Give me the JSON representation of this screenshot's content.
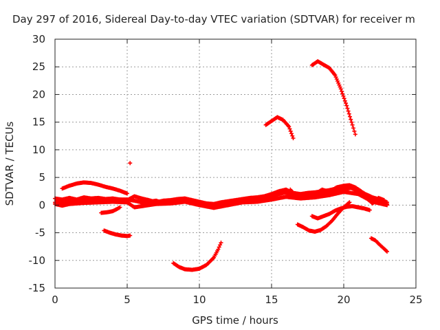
{
  "chart_data": {
    "type": "scatter",
    "title": "Day 297 of 2016, Sidereal Day-to-day VTEC variation (SDTVAR) for receiver m",
    "xlabel": "GPS time / hours",
    "ylabel": "SDTVAR / TECUs",
    "xlim": [
      0,
      25
    ],
    "ylim": [
      -15,
      30
    ],
    "x_ticks": [
      0,
      5,
      10,
      15,
      20,
      25
    ],
    "y_ticks": [
      -15,
      -10,
      -5,
      0,
      5,
      10,
      15,
      20,
      25,
      30
    ],
    "grid": true,
    "marker": "+",
    "color": "#ff0000",
    "series": [
      {
        "points": [
          [
            0.0,
            0.5
          ],
          [
            0.5,
            0.3
          ],
          [
            1.0,
            0.6
          ],
          [
            1.5,
            0.7
          ],
          [
            2.0,
            0.8
          ],
          [
            2.5,
            0.7
          ],
          [
            3.0,
            0.9
          ],
          [
            3.5,
            0.8
          ],
          [
            4.0,
            0.9
          ],
          [
            4.5,
            1.0
          ],
          [
            5.0,
            1.0
          ],
          [
            5.5,
            0.8
          ],
          [
            6.0,
            0.5
          ],
          [
            6.5,
            0.6
          ],
          [
            7.0,
            0.8
          ],
          [
            7.5,
            0.4
          ],
          [
            8.0,
            0.6
          ],
          [
            8.5,
            0.8
          ],
          [
            9.0,
            1.0
          ],
          [
            9.5,
            0.7
          ],
          [
            10.0,
            0.4
          ],
          [
            10.5,
            0.1
          ],
          [
            11.0,
            -0.2
          ],
          [
            11.5,
            0.0
          ],
          [
            12.0,
            0.3
          ],
          [
            12.5,
            0.6
          ],
          [
            13.0,
            0.8
          ],
          [
            13.5,
            0.9
          ],
          [
            14.0,
            1.0
          ],
          [
            14.5,
            1.2
          ],
          [
            15.0,
            1.5
          ],
          [
            15.5,
            2.0
          ],
          [
            16.0,
            2.3
          ],
          [
            16.5,
            1.8
          ],
          [
            17.0,
            1.5
          ],
          [
            17.5,
            1.6
          ],
          [
            18.0,
            1.9
          ],
          [
            18.5,
            2.1
          ],
          [
            19.0,
            2.3
          ],
          [
            19.5,
            2.7
          ],
          [
            20.0,
            2.9
          ],
          [
            20.5,
            3.1
          ],
          [
            21.0,
            2.5
          ],
          [
            21.5,
            1.6
          ],
          [
            22.0,
            1.0
          ],
          [
            22.5,
            0.6
          ],
          [
            23.0,
            0.2
          ]
        ]
      },
      {
        "points": [
          [
            0.0,
            1.2
          ],
          [
            0.5,
            1.0
          ],
          [
            1.0,
            1.3
          ],
          [
            1.5,
            1.0
          ],
          [
            2.0,
            1.4
          ],
          [
            2.5,
            1.2
          ],
          [
            3.0,
            1.3
          ],
          [
            3.5,
            1.1
          ],
          [
            4.0,
            1.2
          ],
          [
            4.5,
            1.0
          ],
          [
            5.0,
            0.9
          ],
          [
            5.5,
            1.6
          ],
          [
            6.0,
            1.2
          ],
          [
            6.5,
            0.9
          ],
          [
            7.0,
            0.5
          ],
          [
            7.5,
            0.8
          ],
          [
            8.0,
            0.9
          ],
          [
            8.5,
            1.1
          ],
          [
            9.0,
            1.2
          ],
          [
            9.5,
            0.9
          ],
          [
            10.0,
            0.6
          ],
          [
            10.5,
            0.3
          ],
          [
            11.0,
            0.2
          ],
          [
            11.5,
            0.5
          ],
          [
            12.0,
            0.7
          ],
          [
            12.5,
            0.9
          ],
          [
            13.0,
            1.1
          ],
          [
            13.5,
            1.3
          ],
          [
            14.0,
            1.4
          ],
          [
            14.5,
            1.6
          ],
          [
            15.0,
            2.0
          ],
          [
            15.5,
            2.5
          ],
          [
            16.0,
            2.8
          ],
          [
            16.5,
            2.2
          ],
          [
            17.0,
            2.0
          ],
          [
            17.5,
            2.2
          ],
          [
            18.0,
            2.3
          ],
          [
            18.5,
            2.5
          ],
          [
            19.0,
            2.7
          ],
          [
            19.5,
            3.0
          ],
          [
            20.0,
            3.2
          ],
          [
            20.5,
            3.4
          ],
          [
            21.0,
            2.8
          ],
          [
            21.5,
            2.0
          ],
          [
            22.0,
            1.4
          ],
          [
            22.5,
            1.0
          ],
          [
            23.0,
            0.5
          ]
        ]
      },
      {
        "points": [
          [
            0.0,
            0.2
          ],
          [
            0.5,
            -0.1
          ],
          [
            1.0,
            0.2
          ],
          [
            2.0,
            0.4
          ],
          [
            3.0,
            0.5
          ],
          [
            4.0,
            0.6
          ],
          [
            5.0,
            0.5
          ],
          [
            5.5,
            -0.4
          ],
          [
            6.0,
            -0.2
          ],
          [
            7.0,
            0.2
          ],
          [
            8.0,
            0.3
          ],
          [
            9.0,
            0.6
          ],
          [
            10.0,
            0.0
          ],
          [
            11.0,
            -0.5
          ],
          [
            12.0,
            0.0
          ],
          [
            13.0,
            0.5
          ],
          [
            14.0,
            0.6
          ],
          [
            15.0,
            1.0
          ],
          [
            16.0,
            1.5
          ],
          [
            17.0,
            1.2
          ],
          [
            18.0,
            1.4
          ],
          [
            19.0,
            1.8
          ],
          [
            20.0,
            2.4
          ],
          [
            21.0,
            2.0
          ],
          [
            22.0,
            0.6
          ],
          [
            23.0,
            0.0
          ]
        ]
      },
      {
        "points": [
          [
            0.5,
            3.0
          ],
          [
            1.0,
            3.5
          ],
          [
            1.5,
            3.9
          ],
          [
            2.0,
            4.1
          ],
          [
            2.5,
            4.0
          ],
          [
            3.0,
            3.7
          ],
          [
            3.5,
            3.3
          ],
          [
            4.0,
            3.0
          ],
          [
            4.5,
            2.6
          ],
          [
            4.8,
            2.3
          ],
          [
            5.0,
            2.1
          ]
        ]
      },
      {
        "points": [
          [
            3.2,
            -1.4
          ],
          [
            3.6,
            -1.3
          ],
          [
            4.0,
            -1.1
          ],
          [
            4.3,
            -0.7
          ],
          [
            4.5,
            -0.4
          ]
        ]
      },
      {
        "points": [
          [
            3.4,
            -4.6
          ],
          [
            3.8,
            -5.0
          ],
          [
            4.2,
            -5.3
          ],
          [
            4.6,
            -5.5
          ],
          [
            5.0,
            -5.6
          ],
          [
            5.2,
            -5.5
          ]
        ]
      },
      {
        "points": [
          [
            5.2,
            7.6
          ]
        ]
      },
      {
        "points": [
          [
            8.2,
            -10.5
          ],
          [
            8.6,
            -11.2
          ],
          [
            9.0,
            -11.6
          ],
          [
            9.5,
            -11.7
          ],
          [
            10.0,
            -11.5
          ],
          [
            10.5,
            -10.8
          ],
          [
            11.0,
            -9.5
          ],
          [
            11.3,
            -8.0
          ],
          [
            11.5,
            -6.8
          ]
        ]
      },
      {
        "points": [
          [
            14.6,
            14.5
          ],
          [
            15.0,
            15.2
          ],
          [
            15.4,
            15.9
          ],
          [
            15.8,
            15.4
          ],
          [
            16.2,
            14.2
          ],
          [
            16.5,
            12.1
          ]
        ]
      },
      {
        "points": [
          [
            17.8,
            25.3
          ],
          [
            18.2,
            26.0
          ],
          [
            18.6,
            25.4
          ],
          [
            19.0,
            24.8
          ],
          [
            19.4,
            23.5
          ],
          [
            19.8,
            21.0
          ],
          [
            20.2,
            18.0
          ],
          [
            20.6,
            14.5
          ],
          [
            20.8,
            12.8
          ]
        ]
      },
      {
        "points": [
          [
            16.8,
            -3.5
          ],
          [
            17.2,
            -4.0
          ],
          [
            17.6,
            -4.6
          ],
          [
            18.0,
            -4.8
          ],
          [
            18.4,
            -4.5
          ],
          [
            18.8,
            -3.8
          ],
          [
            19.2,
            -2.8
          ],
          [
            19.6,
            -1.5
          ],
          [
            20.0,
            -0.4
          ],
          [
            20.4,
            0.5
          ]
        ]
      },
      {
        "points": [
          [
            17.8,
            -2.0
          ],
          [
            18.2,
            -2.4
          ],
          [
            18.6,
            -2.0
          ],
          [
            19.0,
            -1.6
          ],
          [
            19.4,
            -1.0
          ],
          [
            19.8,
            -0.6
          ],
          [
            20.2,
            -0.3
          ],
          [
            20.6,
            -0.2
          ],
          [
            21.0,
            -0.4
          ],
          [
            21.4,
            -0.6
          ],
          [
            21.8,
            -0.9
          ]
        ]
      },
      {
        "points": [
          [
            21.9,
            -6.0
          ],
          [
            22.2,
            -6.4
          ],
          [
            22.5,
            -7.2
          ],
          [
            22.8,
            -7.9
          ],
          [
            23.0,
            -8.4
          ]
        ]
      },
      {
        "points": [
          [
            16.0,
            1.5
          ],
          [
            16.3,
            2.8
          ],
          [
            16.5,
            2.2
          ],
          [
            16.8,
            1.5
          ],
          [
            17.2,
            1.9
          ],
          [
            17.6,
            2.2
          ],
          [
            18.0,
            2.0
          ],
          [
            18.5,
            2.8
          ],
          [
            19.0,
            2.4
          ],
          [
            19.5,
            3.2
          ],
          [
            20.0,
            3.5
          ],
          [
            20.4,
            3.6
          ],
          [
            20.8,
            3.2
          ],
          [
            21.2,
            2.5
          ],
          [
            21.6,
            1.2
          ],
          [
            22.0,
            0.3
          ],
          [
            22.4,
            1.3
          ],
          [
            22.8,
            0.9
          ]
        ]
      }
    ]
  }
}
